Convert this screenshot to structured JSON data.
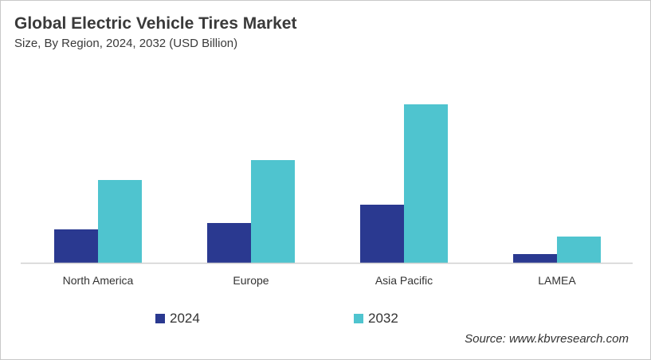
{
  "chart_data": {
    "type": "bar",
    "title": "Global Electric Vehicle Tires Market",
    "subtitle": "Size, By Region, 2024, 2032 (USD Billion)",
    "categories": [
      "North America",
      "Europe",
      "Asia Pacific",
      "LAMEA"
    ],
    "series": [
      {
        "name": "2024",
        "color": "#2a3990",
        "values": [
          2.1,
          2.5,
          3.65,
          0.55
        ]
      },
      {
        "name": "2032",
        "color": "#4fc4cf",
        "values": [
          5.2,
          6.45,
          9.95,
          1.65
        ]
      }
    ],
    "ylim": [
      0,
      10
    ],
    "grid": false,
    "y_axis_shown": false,
    "legend_position": "bottom",
    "source": "Source: www.kbvresearch.com"
  }
}
